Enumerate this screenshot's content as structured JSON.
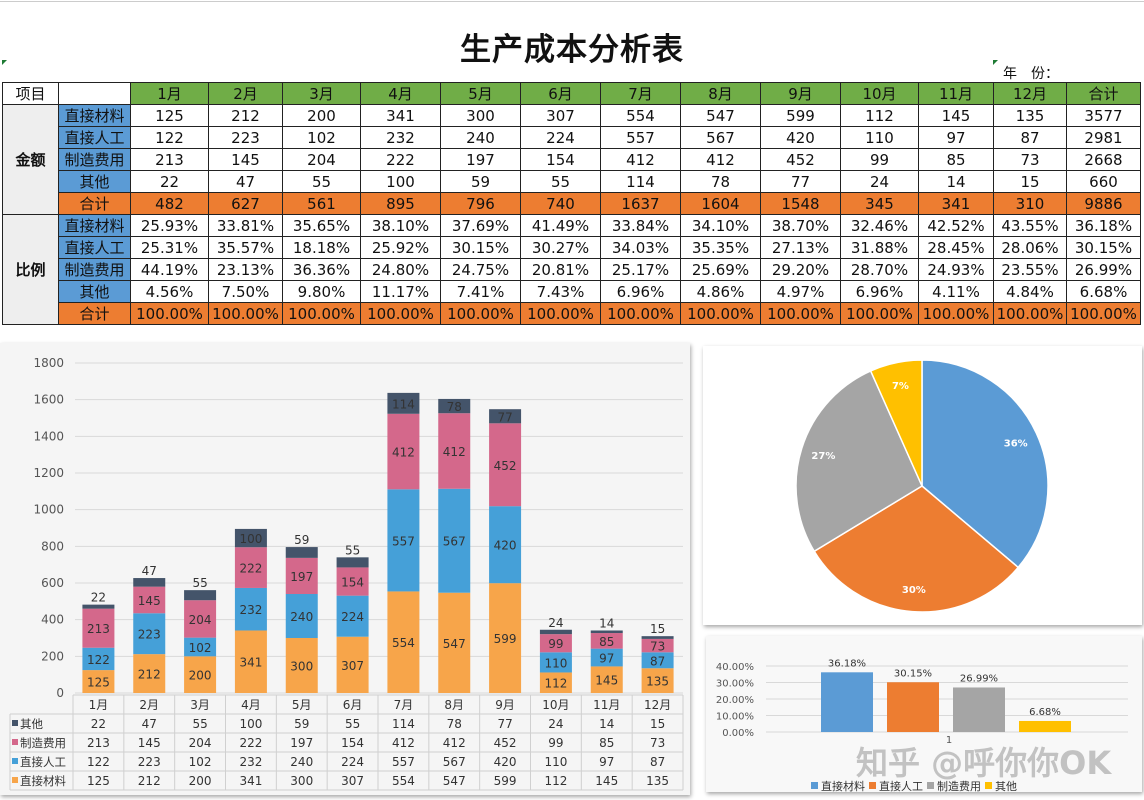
{
  "title": "生产成本分析表",
  "year_label": "年　份：",
  "table": {
    "corner": "项目",
    "headers": [
      "1月",
      "2月",
      "3月",
      "4月",
      "5月",
      "6月",
      "7月",
      "8月",
      "9月",
      "10月",
      "11月",
      "12月",
      "合计"
    ],
    "amount_group": "金额",
    "ratio_group": "比例",
    "amount_rows": [
      {
        "label": "直接材料",
        "values": [
          "125",
          "212",
          "200",
          "341",
          "300",
          "307",
          "554",
          "547",
          "599",
          "112",
          "145",
          "135",
          "3577"
        ]
      },
      {
        "label": "直接人工",
        "values": [
          "122",
          "223",
          "102",
          "232",
          "240",
          "224",
          "557",
          "567",
          "420",
          "110",
          "97",
          "87",
          "2981"
        ]
      },
      {
        "label": "制造费用",
        "values": [
          "213",
          "145",
          "204",
          "222",
          "197",
          "154",
          "412",
          "412",
          "452",
          "99",
          "85",
          "73",
          "2668"
        ]
      },
      {
        "label": "其他",
        "values": [
          "22",
          "47",
          "55",
          "100",
          "59",
          "55",
          "114",
          "78",
          "77",
          "24",
          "14",
          "15",
          "660"
        ]
      },
      {
        "label": "合计",
        "values": [
          "482",
          "627",
          "561",
          "895",
          "796",
          "740",
          "1637",
          "1604",
          "1548",
          "345",
          "341",
          "310",
          "9886"
        ]
      }
    ],
    "ratio_rows": [
      {
        "label": "直接材料",
        "values": [
          "25.93%",
          "33.81%",
          "35.65%",
          "38.10%",
          "37.69%",
          "41.49%",
          "33.84%",
          "34.10%",
          "38.70%",
          "32.46%",
          "42.52%",
          "43.55%",
          "36.18%"
        ]
      },
      {
        "label": "直接人工",
        "values": [
          "25.31%",
          "35.57%",
          "18.18%",
          "25.92%",
          "30.15%",
          "30.27%",
          "34.03%",
          "35.35%",
          "27.13%",
          "31.88%",
          "28.45%",
          "28.06%",
          "30.15%"
        ]
      },
      {
        "label": "制造费用",
        "values": [
          "44.19%",
          "23.13%",
          "36.36%",
          "24.80%",
          "24.75%",
          "20.81%",
          "25.17%",
          "25.69%",
          "29.20%",
          "28.70%",
          "24.93%",
          "23.55%",
          "26.99%"
        ]
      },
      {
        "label": "其他",
        "values": [
          "4.56%",
          "7.50%",
          "9.80%",
          "11.17%",
          "7.41%",
          "7.43%",
          "6.96%",
          "4.86%",
          "4.97%",
          "6.96%",
          "4.11%",
          "4.84%",
          "6.68%"
        ]
      },
      {
        "label": "合计",
        "values": [
          "100.00%",
          "100.00%",
          "100.00%",
          "100.00%",
          "100.00%",
          "100.00%",
          "100.00%",
          "100.00%",
          "100.00%",
          "100.00%",
          "100.00%",
          "100.00%",
          "100.00%"
        ]
      }
    ]
  },
  "colors": {
    "header_green": "#70ad47",
    "label_blue": "#5b9bd5",
    "total_orange": "#ed7d31"
  },
  "watermark": "知乎 @呼你你OK",
  "chart_data": [
    {
      "type": "bar",
      "stacked": true,
      "with_data_table": true,
      "categories": [
        "1月",
        "2月",
        "3月",
        "4月",
        "5月",
        "6月",
        "7月",
        "8月",
        "9月",
        "10月",
        "11月",
        "12月"
      ],
      "ylim": [
        0,
        1800
      ],
      "yticks": [
        0,
        200,
        400,
        600,
        800,
        1000,
        1200,
        1400,
        1600,
        1800
      ],
      "grid": true,
      "series": [
        {
          "name": "直接材料",
          "color": "#f7a54a",
          "values": [
            125,
            212,
            200,
            341,
            300,
            307,
            554,
            547,
            599,
            112,
            145,
            135
          ]
        },
        {
          "name": "直接人工",
          "color": "#45a0d8",
          "values": [
            122,
            223,
            102,
            232,
            240,
            224,
            557,
            567,
            420,
            110,
            97,
            87
          ]
        },
        {
          "name": "制造费用",
          "color": "#d4688b",
          "values": [
            213,
            145,
            204,
            222,
            197,
            154,
            412,
            412,
            452,
            99,
            85,
            73
          ]
        },
        {
          "name": "其他",
          "color": "#44546a",
          "values": [
            22,
            47,
            55,
            100,
            59,
            55,
            114,
            78,
            77,
            24,
            14,
            15
          ]
        }
      ]
    },
    {
      "type": "pie",
      "categories": [
        "直接材料",
        "直接人工",
        "制造费用",
        "其他"
      ],
      "values": [
        36.18,
        30.15,
        26.99,
        6.68
      ],
      "labels": [
        "36%",
        "30%",
        "27%",
        "7%"
      ],
      "colors": [
        "#5b9bd5",
        "#ed7d31",
        "#a5a5a5",
        "#ffc000"
      ]
    },
    {
      "type": "bar",
      "categories": [
        "直接材料",
        "直接人工",
        "制造费用",
        "其他"
      ],
      "xtick": "1",
      "values": [
        36.18,
        30.15,
        26.99,
        6.68
      ],
      "labels": [
        "36.18%",
        "30.15%",
        "26.99%",
        "6.68%"
      ],
      "colors": [
        "#5b9bd5",
        "#ed7d31",
        "#a5a5a5",
        "#ffc000"
      ],
      "ylim": [
        0,
        40
      ],
      "yticks": [
        "0.00%",
        "10.00%",
        "20.00%",
        "30.00%",
        "40.00%"
      ],
      "grid": true,
      "legend": "bottom"
    }
  ]
}
